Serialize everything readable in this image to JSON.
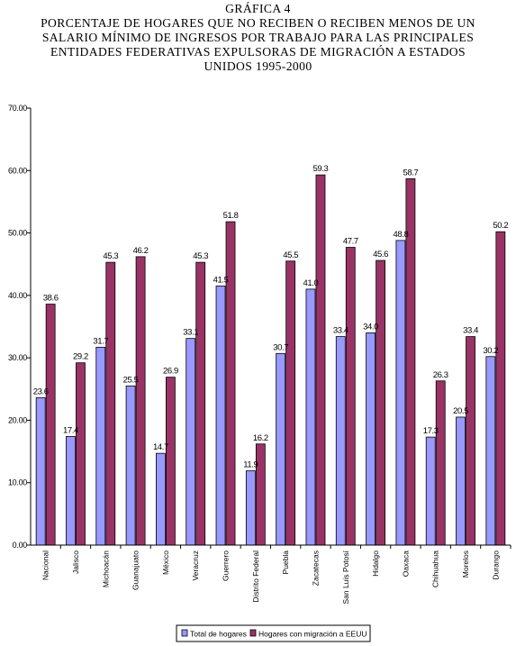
{
  "title_lines": [
    "GRÁFICA 4",
    "PORCENTAJE DE HOGARES QUE NO RECIBEN O RECIBEN MENOS DE UN",
    "SALARIO MÍNIMO DE INGRESOS POR TRABAJO PARA LAS PRINCIPALES",
    "ENTIDADES FEDERATIVAS EXPULSORAS DE MIGRACIÓN A ESTADOS",
    "UNIDOS 1995-2000"
  ],
  "chart_data": {
    "type": "bar",
    "title": "PORCENTAJE DE HOGARES QUE NO RECIBEN O RECIBEN MENOS DE UN SALARIO MÍNIMO DE INGRESOS POR TRABAJO PARA LAS PRINCIPALES ENTIDADES FEDERATIVAS EXPULSORAS DE MIGRACIÓN A ESTADOS UNIDOS 1995-2000",
    "categories": [
      "Nacional",
      "Jalisco",
      "Michoacán",
      "Guanajuato",
      "México",
      "Veracruz",
      "Guerrero",
      "Distrito Federal",
      "Puebla",
      "Zacatecas",
      "San Luis Potosí",
      "Hidalgo",
      "Oaxaca",
      "Chihuahua",
      "Morelos",
      "Durango"
    ],
    "series": [
      {
        "name": "Total de hogares",
        "color": "#9999ff",
        "values": [
          23.6,
          17.4,
          31.7,
          25.5,
          14.7,
          33.1,
          41.5,
          11.9,
          30.7,
          41.0,
          33.4,
          34.0,
          48.8,
          17.3,
          20.5,
          30.2
        ],
        "labels": [
          "23.6",
          "17.4",
          "31.7",
          "25.5",
          "14.7",
          "33.1",
          "41.5",
          "11.9",
          "30.7",
          "41.0",
          "33.4",
          "34.0",
          "48.8",
          "17.3",
          "20.5",
          "30.2"
        ]
      },
      {
        "name": "Hogares con migración a EEUU",
        "color": "#993366",
        "values": [
          38.6,
          29.2,
          45.3,
          46.2,
          26.9,
          45.3,
          51.8,
          16.2,
          45.5,
          59.3,
          47.7,
          45.6,
          58.7,
          26.3,
          33.4,
          50.2
        ],
        "labels": [
          "38.6",
          "29.2",
          "45.3",
          "46.2",
          "26.9",
          "45.3",
          "51.8",
          "16.2",
          "45.5",
          "59.3",
          "47.7",
          "45.6",
          "58.7",
          "26.3",
          "33.4",
          "50.2"
        ]
      }
    ],
    "yticks": [
      "0.00",
      "10.00",
      "20.00",
      "30.00",
      "40.00",
      "50.00",
      "60.00",
      "70.00"
    ],
    "ylim": [
      0,
      70
    ],
    "xlabel": "",
    "ylabel": "",
    "grid": false,
    "legend_position": "bottom"
  }
}
